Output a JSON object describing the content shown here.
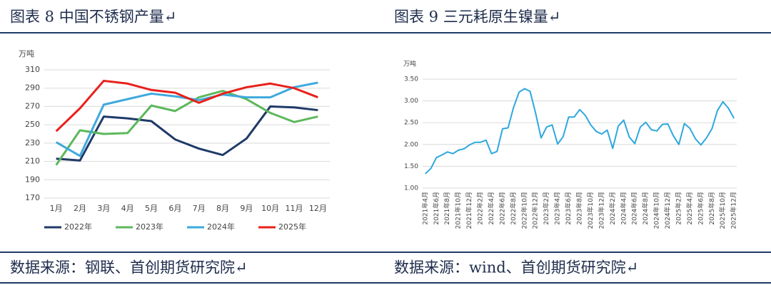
{
  "chart_data": [
    {
      "type": "line",
      "title": "图表 8 中国不锈钢产量↵",
      "source": "数据来源：钢联、首创期货研究院↵",
      "y_label": "万吨",
      "categories": [
        "1月",
        "2月",
        "3月",
        "4月",
        "5月",
        "6月",
        "7月",
        "8月",
        "9月",
        "10月",
        "11月",
        "12月"
      ],
      "series": [
        {
          "name": "2022年",
          "color": "#1f3a68",
          "values": [
            213,
            211,
            259,
            257,
            254,
            234,
            224,
            217,
            235,
            270,
            269,
            266
          ]
        },
        {
          "name": "2023年",
          "color": "#5cb85c",
          "values": [
            206,
            244,
            240,
            241,
            271,
            265,
            280,
            287,
            278,
            263,
            253,
            259
          ]
        },
        {
          "name": "2024年",
          "color": "#3fa9dd",
          "values": [
            231,
            216,
            272,
            278,
            284,
            281,
            277,
            283,
            280,
            280,
            291,
            296
          ]
        },
        {
          "name": "2025年",
          "color": "#e8201a",
          "values": [
            243,
            268,
            298,
            295,
            288,
            285,
            274,
            284,
            291,
            295,
            290,
            280
          ]
        }
      ],
      "ylim": [
        170,
        310
      ],
      "yticks": [
        170,
        190,
        210,
        230,
        250,
        270,
        290,
        310
      ],
      "grid": true,
      "legend": "bottom"
    },
    {
      "type": "line",
      "title": "图表 9 三元耗原生镍量↵",
      "source": "数据来源：wind、首创期货研究院↵",
      "y_label": "万吨",
      "categories": [
        "2021年4月",
        null,
        "2021年6月",
        null,
        "2021年8月",
        null,
        "2021年10月",
        null,
        "2021年12月",
        null,
        "2022年2月",
        null,
        "2022年4月",
        null,
        "2022年6月",
        null,
        "2022年8月",
        null,
        "2022年10月",
        null,
        "2022年12月",
        null,
        "2023年2月",
        null,
        "2023年4月",
        null,
        "2023年6月",
        null,
        "2023年8月",
        null,
        "2023年10月",
        null,
        "2023年12月",
        null,
        "2024年2月",
        null,
        "2024年4月",
        null,
        "2024年6月",
        null,
        "2024年8月",
        null,
        "2024年10月",
        null,
        "2024年12月",
        null,
        "2025年2月",
        null,
        "2025年4月",
        null,
        "2025年6月",
        null,
        "2025年8月",
        null,
        "2025年10月",
        null,
        "2025年12月"
      ],
      "series": [
        {
          "name": "三元耗原生镍量",
          "color": "#2ea8df",
          "values": [
            1.33,
            1.45,
            1.7,
            1.76,
            1.83,
            1.79,
            1.87,
            1.9,
            1.99,
            2.05,
            2.05,
            2.1,
            1.79,
            1.84,
            2.36,
            2.38,
            2.85,
            3.2,
            3.28,
            3.22,
            2.72,
            2.15,
            2.4,
            2.45,
            2.01,
            2.18,
            2.63,
            2.63,
            2.8,
            2.67,
            2.45,
            2.3,
            2.24,
            2.33,
            1.91,
            2.42,
            2.56,
            2.17,
            2.02,
            2.4,
            2.51,
            2.34,
            2.31,
            2.46,
            2.47,
            2.2,
            2.0,
            2.48,
            2.37,
            2.13,
            1.99,
            2.15,
            2.36,
            2.78,
            2.98,
            2.83,
            2.6
          ]
        }
      ],
      "ylim": [
        1.0,
        3.5
      ],
      "yticks": [
        {
          "value": 1.0,
          "label": "1.00"
        },
        {
          "value": 1.5,
          "label": "1.50"
        },
        {
          "value": 2.0,
          "label": "2.00"
        },
        {
          "value": 2.5,
          "label": "2.50"
        },
        {
          "value": 3.0,
          "label": "3.00"
        },
        {
          "value": 3.5,
          "label": "3.50"
        }
      ],
      "grid": true
    }
  ]
}
